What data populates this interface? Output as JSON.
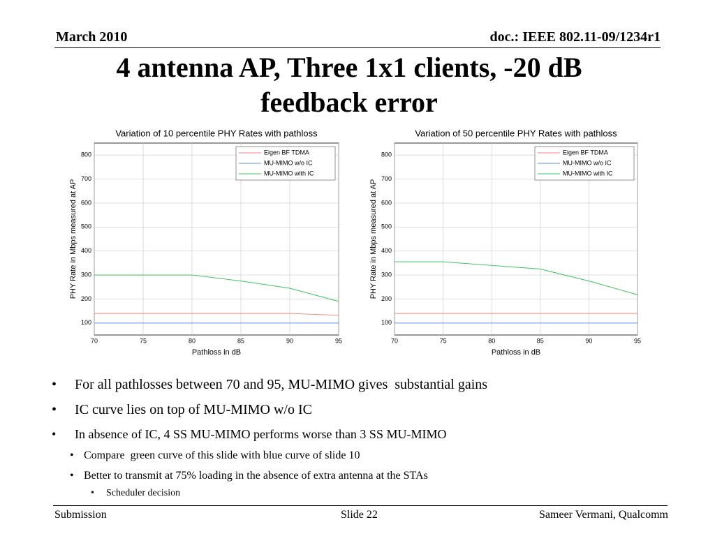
{
  "header": {
    "date": "March 2010",
    "doc": "doc.: IEEE 802.11-09/1234r1"
  },
  "title": "4 antenna AP, Three 1x1 clients, -20 dB feedback error",
  "chart_data": [
    {
      "type": "line",
      "title": "Variation of 10 percentile PHY Rates with pathloss",
      "x_label": "Pathloss in dB",
      "y_label": "PHY Rate in Mbps measured at AP",
      "x": [
        70,
        75,
        80,
        85,
        90,
        95
      ],
      "xlim": [
        70,
        95
      ],
      "xticks": [
        70,
        75,
        80,
        85,
        90,
        95
      ],
      "ylim": [
        50,
        850
      ],
      "yticks": [
        100,
        200,
        300,
        400,
        500,
        600,
        700,
        800
      ],
      "grid": true,
      "legend": "upper right",
      "series": [
        {
          "name": "Eigen BF TDMA",
          "color": "#f08080",
          "values": [
            140,
            140,
            140,
            140,
            140,
            132
          ]
        },
        {
          "name": "MU-MIMO w/o IC",
          "color": "#6a8cf0",
          "values": [
            100,
            100,
            100,
            100,
            100,
            100
          ]
        },
        {
          "name": "MU-MIMO with IC",
          "color": "#3cc060",
          "values": [
            300,
            300,
            300,
            275,
            245,
            190
          ]
        }
      ]
    },
    {
      "type": "line",
      "title": "Variation of 50 percentile PHY Rates with pathloss",
      "x_label": "Pathloss in dB",
      "y_label": "PHY Rate in Mbps measured at AP",
      "x": [
        70,
        75,
        80,
        85,
        90,
        95
      ],
      "xlim": [
        70,
        95
      ],
      "xticks": [
        70,
        75,
        80,
        85,
        90,
        95
      ],
      "ylim": [
        50,
        850
      ],
      "yticks": [
        100,
        200,
        300,
        400,
        500,
        600,
        700,
        800
      ],
      "grid": true,
      "legend": "upper right",
      "series": [
        {
          "name": "Eigen BF TDMA",
          "color": "#f08080",
          "values": [
            140,
            140,
            140,
            140,
            140,
            140
          ]
        },
        {
          "name": "MU-MIMO w/o IC",
          "color": "#6a8cf0",
          "values": [
            100,
            100,
            100,
            100,
            100,
            100
          ]
        },
        {
          "name": "MU-MIMO with  IC",
          "color": "#3cc060",
          "values": [
            355,
            355,
            340,
            325,
            275,
            218
          ]
        }
      ]
    }
  ],
  "bullets": [
    "For all pathlosses between 70 and 95, MU-MIMO gives  substantial gains",
    "IC curve lies on top of MU-MIMO w/o IC",
    "In absence of IC, 4 SS MU-MIMO performs worse than 3 SS MU-MIMO"
  ],
  "sub_bullets": [
    "Compare  green curve of this slide with blue curve of slide 10",
    "Better to transmit at 75% loading in the absence of extra antenna at the STAs"
  ],
  "sub_sub_bullets": [
    "Scheduler decision"
  ],
  "footer": {
    "left": "Submission",
    "center": "Slide 22",
    "right": "Sameer Vermani, Qualcomm"
  }
}
